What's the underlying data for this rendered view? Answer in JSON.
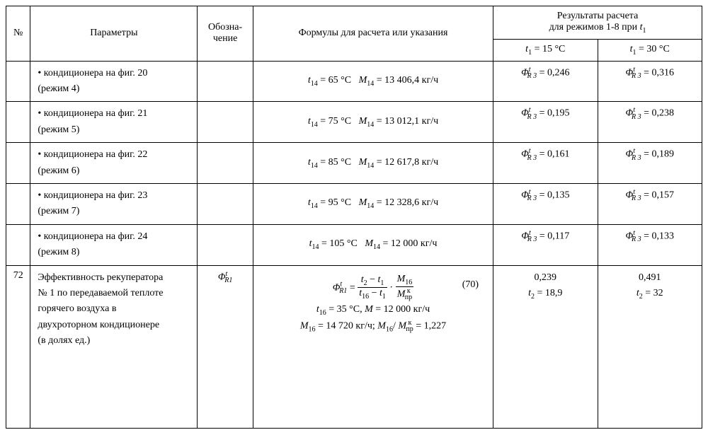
{
  "header": {
    "num": "№",
    "params": "Параметры",
    "symbol": "Обозна-\nчение",
    "formula": "Формулы для расчета или указания",
    "results_title": "Результаты расчета",
    "results_sub": "для режимов 1-8 при ",
    "results_sub_var": "t",
    "results_sub_idx": "1",
    "col15_var": "t",
    "col15_idx": "1",
    "col15_eq": " = 15 °C",
    "col30_var": "t",
    "col30_idx": "1",
    "col30_eq": " = 30 °C"
  },
  "rows": [
    {
      "param_l1": "• кондиционера на фиг. 20",
      "param_l2": "(режим 4)",
      "fv_t": "t",
      "fv_ti": "14",
      "fv_t_eq": " = 65 °C     ",
      "fv_m": "M",
      "fv_mi": "14",
      "fv_m_eq": " = 13 406,4 кг/ч",
      "r15_phi": "Φ",
      "r15_sup": "t",
      "r15_sub": "R 3",
      "r15_eq": " = 0,246",
      "r30_phi": "Φ",
      "r30_sup": "t",
      "r30_sub": "R 3",
      "r30_eq": " = 0,316"
    },
    {
      "param_l1": "• кондиционера на фиг. 21",
      "param_l2": "(режим 5)",
      "fv_t": "t",
      "fv_ti": "14",
      "fv_t_eq": " = 75 °C     ",
      "fv_m": "M",
      "fv_mi": "14",
      "fv_m_eq": " = 13 012,1 кг/ч",
      "r15_phi": "Φ",
      "r15_sup": "t",
      "r15_sub": "R 3",
      "r15_eq": " = 0,195",
      "r30_phi": "Φ",
      "r30_sup": "t",
      "r30_sub": "R 3",
      "r30_eq": " = 0,238"
    },
    {
      "param_l1": "• кондиционера на фиг. 22",
      "param_l2": "(режим 6)",
      "fv_t": "t",
      "fv_ti": "14",
      "fv_t_eq": " = 85 °C    ",
      "fv_m": "M",
      "fv_mi": "14",
      "fv_m_eq": " = 12 617,8 кг/ч",
      "r15_phi": "Φ",
      "r15_sup": "t",
      "r15_sub": "R 3",
      "r15_eq": " = 0,161",
      "r30_phi": "Φ",
      "r30_sup": "t",
      "r30_sub": "R 3",
      "r30_eq": " = 0,189"
    },
    {
      "param_l1": "• кондиционера на фиг. 23",
      "param_l2": "(режим 7)",
      "fv_t": "t",
      "fv_ti": "14",
      "fv_t_eq": " = 95 °C     ",
      "fv_m": "M",
      "fv_mi": "14",
      "fv_m_eq": " = 12 328,6 кг/ч",
      "r15_phi": "Φ",
      "r15_sup": "t",
      "r15_sub": "R 3",
      "r15_eq": " = 0,135",
      "r30_phi": "Φ",
      "r30_sup": "t",
      "r30_sub": "R 3",
      "r30_eq": " = 0,157"
    },
    {
      "param_l1": "• кондиционера на фиг. 24",
      "param_l2": "(режим 8)",
      "fv_t": "t",
      "fv_ti": "14",
      "fv_t_eq": " = 105 °C   ",
      "fv_m": "M",
      "fv_mi": "14",
      "fv_m_eq": " = 12 000 кг/ч",
      "r15_phi": "Φ",
      "r15_sup": "t",
      "r15_sub": "R 3",
      "r15_eq": " = 0,117",
      "r30_phi": "Φ",
      "r30_sup": "t",
      "r30_sub": "R 3",
      "r30_eq": " = 0,133"
    }
  ],
  "row72": {
    "num": "72",
    "param_l1": "Эффективность рекуператора",
    "param_l2": "№ 1 по передаваемой теплоте",
    "param_l3": "горячего воздуха в",
    "param_l4": "двухроторном кондиционере",
    "param_l5": "(в долях ед.)",
    "sym_phi": "Φ",
    "sym_sup": "t",
    "sym_sub": "R1",
    "eq_lhs_phi": "Φ",
    "eq_lhs_sup": "t",
    "eq_lhs_sub": "R1",
    "eq_equals": " = ",
    "frac1_num_a": "t",
    "frac1_num_ai": "2",
    "frac1_num_minus": " − ",
    "frac1_num_b": "t",
    "frac1_num_bi": "1",
    "frac1_den_a": "t",
    "frac1_den_ai": "16",
    "frac1_den_minus": " − ",
    "frac1_den_b": "t",
    "frac1_den_bi": "1",
    "frac_sep": " · ",
    "frac2_num_m": "M",
    "frac2_num_mi": "16",
    "frac2_den_m": "M",
    "frac2_den_msub": "пр",
    "frac2_den_msup": "к",
    "eq_num": "(70)",
    "line2_t": "t",
    "line2_ti": "16",
    "line2_teq": " = 35 °C,  ",
    "line2_m": "M",
    "line2_meq": " = 12 000 кг/ч",
    "line3_m": "M",
    "line3_mi": "16",
    "line3_meq": " = 14 720 кг/ч;  ",
    "line3_m2": "M",
    "line3_m2i": "16",
    "line3_slash": "/ ",
    "line3_m3": "M",
    "line3_m3sub": "пр",
    "line3_m3sup": "к",
    "line3_ratioeq": " = 1,227",
    "r15_v1": "0,239",
    "r15_t": "t",
    "r15_ti": "2",
    "r15_teq": " = 18,9",
    "r30_v1": "0,491",
    "r30_t": "t",
    "r30_ti": "2",
    "r30_teq": " = 32"
  }
}
